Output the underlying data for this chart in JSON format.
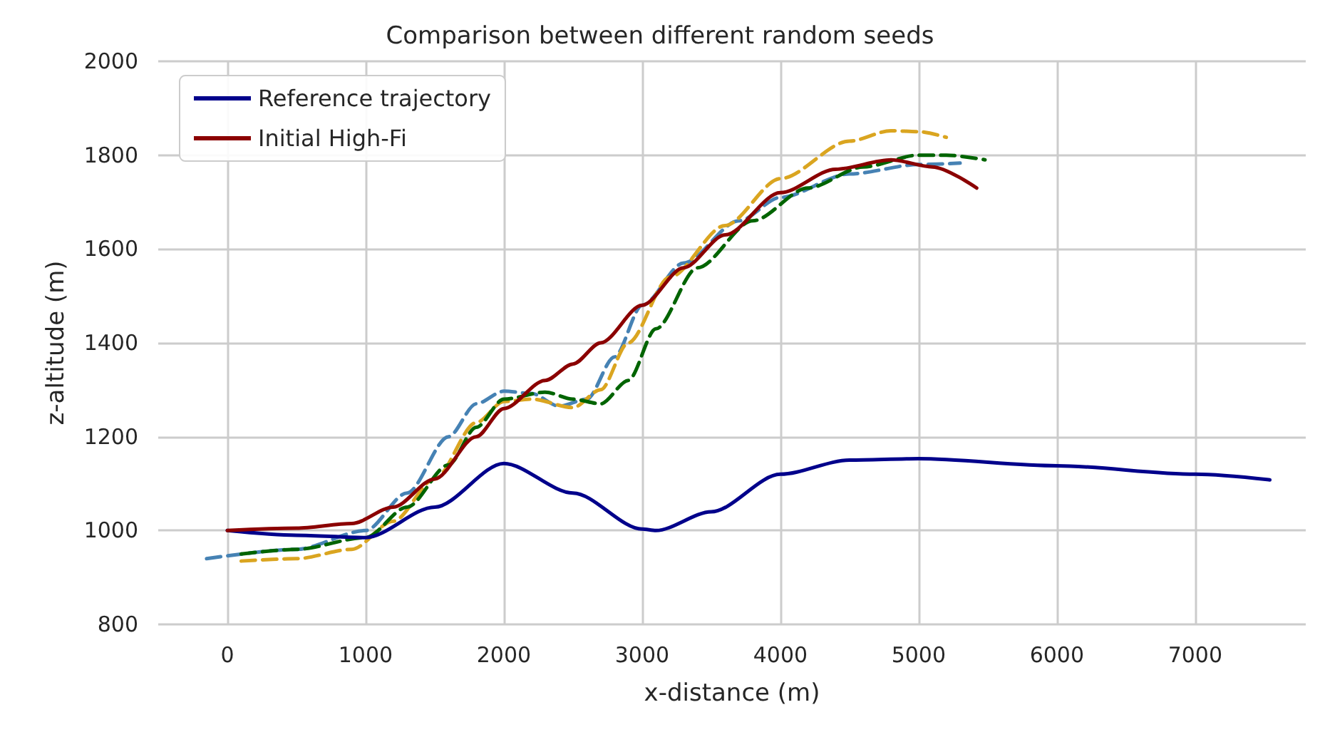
{
  "chart_data": {
    "type": "line",
    "title": "Comparison between different random seeds",
    "xlabel": "x-distance (m)",
    "ylabel": "z-altitude (m)",
    "xlim": [
      -500,
      7800
    ],
    "ylim": [
      800,
      2000
    ],
    "xticks": [
      0,
      1000,
      2000,
      3000,
      4000,
      5000,
      6000,
      7000
    ],
    "yticks": [
      800,
      1000,
      1200,
      1400,
      1600,
      1800,
      2000
    ],
    "grid": true,
    "legend": "top left",
    "series": [
      {
        "color": "#4682b4",
        "line_style": "dashed",
        "x": [
          -150,
          500,
          1000,
          1300,
          1600,
          1800,
          2000,
          2200,
          2400,
          2600,
          2800,
          3000,
          3300,
          3700,
          4000,
          4500,
          5000,
          5300
        ],
        "values": [
          940,
          960,
          1000,
          1080,
          1200,
          1270,
          1297,
          1292,
          1265,
          1280,
          1370,
          1480,
          1570,
          1660,
          1710,
          1760,
          1780,
          1783
        ]
      },
      {
        "color": "#daa520",
        "line_style": "dashed",
        "x": [
          100,
          500,
          900,
          1200,
          1500,
          1800,
          2000,
          2200,
          2500,
          2700,
          2900,
          3200,
          3600,
          4000,
          4500,
          4800,
          5000,
          5200
        ],
        "values": [
          935,
          940,
          960,
          1020,
          1110,
          1230,
          1275,
          1280,
          1262,
          1300,
          1400,
          1540,
          1650,
          1750,
          1830,
          1852,
          1850,
          1838
        ]
      },
      {
        "color": "#006400",
        "line_style": "dashed",
        "x": [
          100,
          500,
          1000,
          1300,
          1600,
          1800,
          2000,
          2300,
          2500,
          2700,
          2900,
          3100,
          3400,
          3800,
          4200,
          4600,
          5000,
          5200,
          5480
        ],
        "values": [
          950,
          960,
          985,
          1050,
          1140,
          1220,
          1280,
          1295,
          1280,
          1270,
          1320,
          1430,
          1560,
          1660,
          1730,
          1775,
          1800,
          1800,
          1790
        ]
      },
      {
        "name": "Reference trajectory",
        "color": "#00008b",
        "line_style": "solid",
        "x": [
          0,
          500,
          1000,
          1500,
          2000,
          2500,
          3000,
          3100,
          3500,
          4000,
          4500,
          5000,
          6000,
          7000,
          7540
        ],
        "values": [
          1000,
          990,
          985,
          1050,
          1143,
          1080,
          1003,
          1000,
          1040,
          1120,
          1150,
          1153,
          1138,
          1120,
          1108
        ]
      },
      {
        "name": "Initial High-Fi",
        "color": "#8b0000",
        "line_style": "solid",
        "x": [
          0,
          500,
          900,
          1200,
          1500,
          1800,
          2000,
          2300,
          2500,
          2700,
          3000,
          3300,
          3600,
          4000,
          4400,
          4800,
          5100,
          5420
        ],
        "values": [
          1000,
          1005,
          1015,
          1050,
          1110,
          1200,
          1260,
          1320,
          1355,
          1400,
          1480,
          1560,
          1630,
          1720,
          1770,
          1790,
          1775,
          1730
        ]
      }
    ]
  }
}
